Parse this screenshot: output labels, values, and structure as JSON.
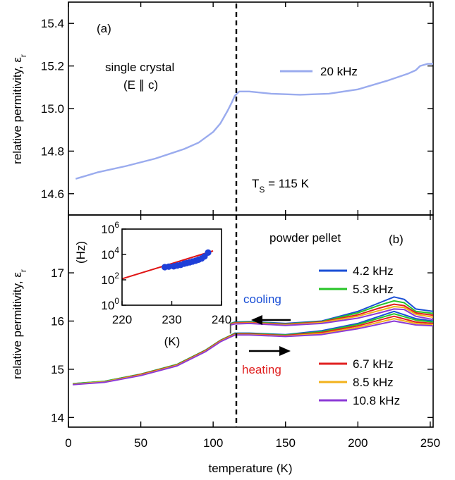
{
  "chart_data": [
    {
      "panel": "(a)",
      "type": "line",
      "ylabel": "relative permitivity, ε",
      "ylabel_sub": "r",
      "ylim": [
        14.5,
        15.5
      ],
      "yticks": [
        "14.6",
        "14.8",
        "15.0",
        "15.2",
        "15.4"
      ],
      "xlim": [
        0,
        252
      ],
      "annotations": {
        "sample_line1": "single crystal",
        "sample_line2": "(E ∥ c)",
        "transition_T": "T",
        "transition_sub": "S",
        "transition_value": " = 115 K"
      },
      "legend_position": "top-right",
      "series": [
        {
          "name": "20 kHz",
          "color": "#9aabee",
          "x": [
            5,
            20,
            40,
            60,
            80,
            90,
            100,
            105,
            110,
            113,
            115,
            118,
            125,
            140,
            160,
            180,
            200,
            220,
            235,
            240,
            243,
            248,
            252
          ],
          "y": [
            14.67,
            14.7,
            14.73,
            14.765,
            14.81,
            14.84,
            14.89,
            14.93,
            14.99,
            15.03,
            15.06,
            15.08,
            15.08,
            15.07,
            15.065,
            15.07,
            15.09,
            15.13,
            15.165,
            15.18,
            15.2,
            15.21,
            15.21
          ]
        }
      ]
    },
    {
      "panel": "(b)",
      "type": "line",
      "xlabel": "temperature (K)",
      "ylabel": "relative permitivity, ε",
      "ylabel_sub": "r",
      "ylim": [
        13.8,
        18.2
      ],
      "yticks": [
        "14",
        "15",
        "16",
        "17"
      ],
      "xlim": [
        0,
        252
      ],
      "xticks": [
        "0",
        "50",
        "100",
        "150",
        "200",
        "250"
      ],
      "annotations": {
        "sample": "powder pellet",
        "cooling": "cooling",
        "heating": "heating"
      },
      "series": [
        {
          "name": "4.2 kHz",
          "color": "#1a4fd6",
          "cooling": {
            "x": [
              112,
              115,
              125,
              150,
              175,
              200,
              215,
              225,
              232,
              240,
              252
            ],
            "y": [
              15.95,
              15.98,
              15.99,
              15.95,
              16.0,
              16.2,
              16.38,
              16.5,
              16.45,
              16.25,
              16.2
            ]
          },
          "heating": {
            "x": [
              3,
              25,
              50,
              75,
              95,
              105,
              112,
              115,
              125,
              150,
              175,
              200,
              225,
              240,
              252
            ],
            "y": [
              14.7,
              14.75,
              14.9,
              15.1,
              15.4,
              15.6,
              15.7,
              15.75,
              15.75,
              15.72,
              15.8,
              15.95,
              16.2,
              16.05,
              16.0
            ]
          }
        },
        {
          "name": "5.3 kHz",
          "color": "#27c427",
          "cooling": {
            "x": [
              112,
              115,
              125,
              150,
              175,
              200,
              215,
              225,
              232,
              240,
              252
            ],
            "y": [
              15.95,
              15.97,
              15.98,
              15.94,
              15.99,
              16.17,
              16.33,
              16.42,
              16.38,
              16.2,
              16.16
            ]
          },
          "heating": {
            "x": [
              3,
              25,
              50,
              75,
              95,
              105,
              112,
              115,
              125,
              150,
              175,
              200,
              225,
              240,
              252
            ],
            "y": [
              14.7,
              14.75,
              14.9,
              15.1,
              15.4,
              15.6,
              15.7,
              15.74,
              15.74,
              15.71,
              15.78,
              15.93,
              16.15,
              16.02,
              15.98
            ]
          }
        },
        {
          "name": "6.7 kHz",
          "color": "#e02020",
          "cooling": {
            "x": [
              112,
              115,
              125,
              150,
              175,
              200,
              215,
              225,
              232,
              240,
              252
            ],
            "y": [
              15.94,
              15.96,
              15.97,
              15.93,
              15.98,
              16.13,
              16.27,
              16.35,
              16.32,
              16.17,
              16.12
            ]
          },
          "heating": {
            "x": [
              3,
              25,
              50,
              75,
              95,
              105,
              112,
              115,
              125,
              150,
              175,
              200,
              225,
              240,
              252
            ],
            "y": [
              14.69,
              14.74,
              14.89,
              15.09,
              15.39,
              15.59,
              15.69,
              15.73,
              15.73,
              15.7,
              15.76,
              15.9,
              16.1,
              15.98,
              15.95
            ]
          }
        },
        {
          "name": "8.5 kHz",
          "color": "#f2b21c",
          "cooling": {
            "x": [
              112,
              115,
              125,
              150,
              175,
              200,
              215,
              225,
              232,
              240,
              252
            ],
            "y": [
              15.93,
              15.95,
              15.96,
              15.92,
              15.97,
              16.1,
              16.22,
              16.3,
              16.28,
              16.14,
              16.08
            ]
          },
          "heating": {
            "x": [
              3,
              25,
              50,
              75,
              95,
              105,
              112,
              115,
              125,
              150,
              175,
              200,
              225,
              240,
              252
            ],
            "y": [
              14.69,
              14.74,
              14.88,
              15.08,
              15.38,
              15.58,
              15.68,
              15.72,
              15.72,
              15.69,
              15.74,
              15.87,
              16.05,
              15.95,
              15.92
            ]
          }
        },
        {
          "name": "10.8 kHz",
          "color": "#8c3ad6",
          "cooling": {
            "x": [
              112,
              115,
              125,
              150,
              175,
              200,
              215,
              225,
              232,
              240,
              252
            ],
            "y": [
              15.92,
              15.94,
              15.95,
              15.91,
              15.95,
              16.06,
              16.17,
              16.25,
              16.24,
              16.1,
              16.03
            ]
          },
          "heating": {
            "x": [
              3,
              25,
              50,
              75,
              95,
              105,
              112,
              115,
              125,
              150,
              175,
              200,
              225,
              240,
              252
            ],
            "y": [
              14.68,
              14.73,
              14.87,
              15.07,
              15.37,
              15.57,
              15.67,
              15.71,
              15.71,
              15.68,
              15.72,
              15.84,
              16.0,
              15.92,
              15.9
            ]
          }
        }
      ]
    },
    {
      "panel": "inset",
      "type": "scatter",
      "xlabel": "(K)",
      "ylabel": "(Hz)",
      "xlim": [
        220,
        240
      ],
      "yscale": "log",
      "ylim": [
        1,
        1000000
      ],
      "xticks": [
        "220",
        "230",
        "240"
      ],
      "yticks": [
        {
          "base": "10",
          "exp": "0"
        },
        {
          "base": "10",
          "exp": "2"
        },
        {
          "base": "10",
          "exp": "4"
        },
        {
          "base": "10",
          "exp": "6"
        }
      ],
      "points": {
        "color": "#1f3fd8",
        "x": [
          228.6,
          229.4,
          230.4,
          231.1,
          231.8,
          232.5,
          233.0,
          233.6,
          234.2,
          234.8,
          235.4,
          236.0,
          236.6,
          237.3
        ],
        "y": [
          1000,
          1100,
          1150,
          1350,
          1500,
          1900,
          2100,
          2400,
          2800,
          3200,
          3900,
          4800,
          7000,
          14000
        ]
      },
      "fit": {
        "color": "#e01515",
        "x": [
          220,
          238.3
        ],
        "y": [
          120,
          19000
        ]
      }
    }
  ]
}
